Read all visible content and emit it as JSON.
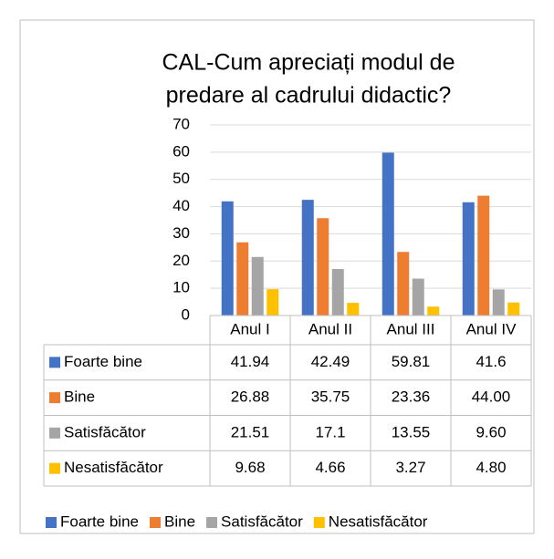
{
  "chart_data": {
    "type": "bar",
    "title": [
      "CAL-Cum apreciați modul de",
      "predare al cadrului didactic?"
    ],
    "categories": [
      "Anul I",
      "Anul II",
      "Anul III",
      "Anul IV"
    ],
    "series": [
      {
        "name": "Foarte bine",
        "color": "#4472c4",
        "values": [
          41.94,
          42.49,
          59.81,
          41.6
        ],
        "value_labels": [
          "41.94",
          "42.49",
          "59.81",
          "41.6"
        ]
      },
      {
        "name": "Bine",
        "color": "#ed7d31",
        "values": [
          26.88,
          35.75,
          23.36,
          44
        ],
        "value_labels": [
          "26.88",
          "35.75",
          "23.36",
          "44.00"
        ]
      },
      {
        "name": "Satisfăcător",
        "color": "#a5a5a5",
        "values": [
          21.51,
          17.1,
          13.55,
          9.6
        ],
        "value_labels": [
          "21.51",
          "17.1",
          "13.55",
          "9.60"
        ]
      },
      {
        "name": "Nesatisfăcător",
        "color": "#ffc000",
        "values": [
          9.68,
          4.66,
          3.27,
          4.8
        ],
        "value_labels": [
          "9.68",
          "4.66",
          "3.27",
          "4.80"
        ]
      }
    ],
    "ylim": [
      0,
      70
    ],
    "yticks": [
      0,
      10,
      20,
      30,
      40,
      50,
      60,
      70
    ],
    "grid": true,
    "legend": "bottom"
  }
}
